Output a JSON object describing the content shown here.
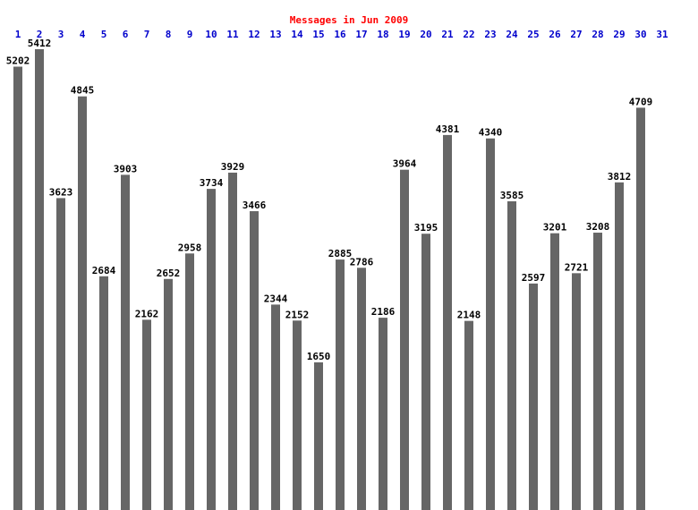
{
  "chart_data": {
    "type": "bar",
    "title": "Messages in Jun 2009",
    "categories": [
      "1",
      "2",
      "3",
      "4",
      "5",
      "6",
      "7",
      "8",
      "9",
      "10",
      "11",
      "12",
      "13",
      "14",
      "15",
      "16",
      "17",
      "18",
      "19",
      "20",
      "21",
      "22",
      "23",
      "24",
      "25",
      "26",
      "27",
      "28",
      "29",
      "30",
      "31"
    ],
    "values": [
      5202,
      5412,
      3623,
      4845,
      2684,
      3903,
      2162,
      2652,
      2958,
      3734,
      3929,
      3466,
      2344,
      2152,
      1650,
      2885,
      2786,
      2186,
      3964,
      3195,
      4381,
      2148,
      4340,
      3585,
      2597,
      3201,
      2721,
      3208,
      3812,
      4709,
      null
    ],
    "color": "#666666",
    "title_color": "#ff0000",
    "category_color": "#0000cc"
  }
}
